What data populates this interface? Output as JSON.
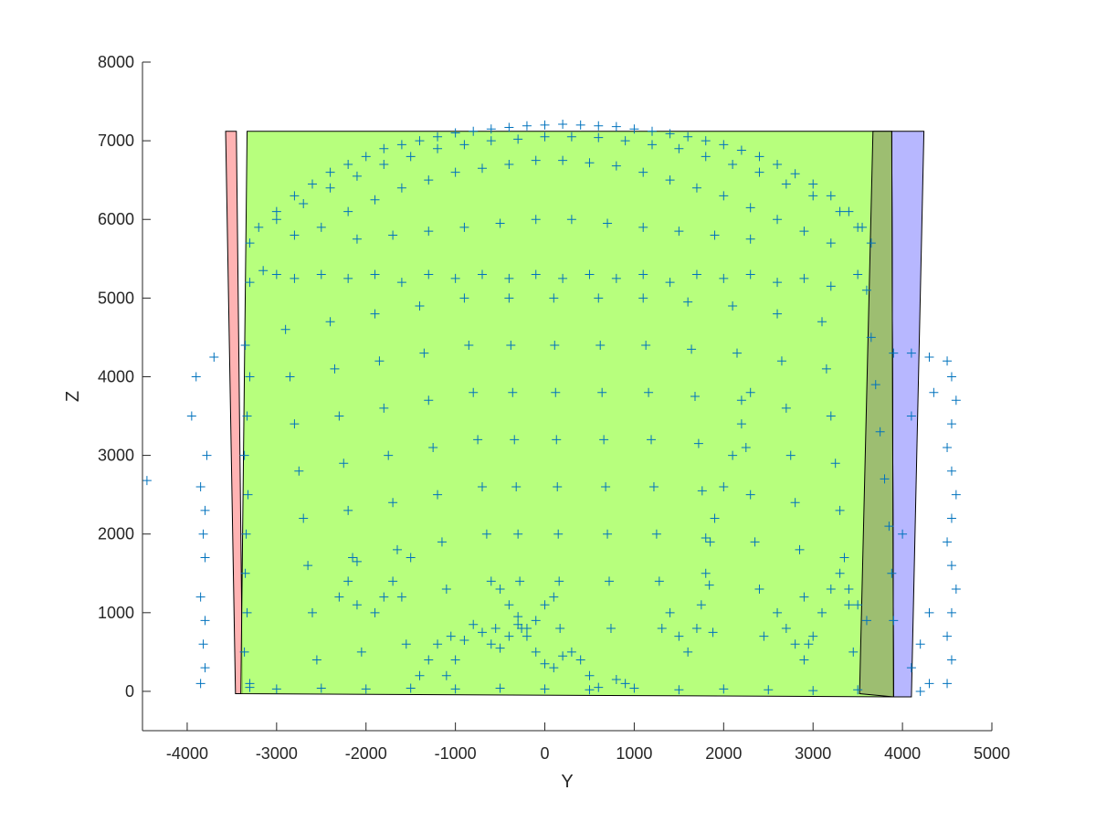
{
  "chart_data": {
    "type": "scatter",
    "xlabel": "Y",
    "ylabel": "Z",
    "xlim": [
      -4500,
      5000
    ],
    "ylim": [
      -500,
      8000
    ],
    "xticks": [
      -4000,
      -3000,
      -2000,
      -1000,
      0,
      1000,
      2000,
      3000,
      4000,
      5000
    ],
    "yticks": [
      0,
      1000,
      2000,
      3000,
      4000,
      5000,
      6000,
      7000,
      8000
    ],
    "xtick_labels": [
      "-4000",
      "-3000",
      "-2000",
      "-1000",
      "0",
      "1000",
      "2000",
      "3000",
      "4000",
      "5000"
    ],
    "ytick_labels": [
      "0",
      "1000",
      "2000",
      "3000",
      "4000",
      "5000",
      "6000",
      "7000",
      "8000"
    ],
    "grid": false,
    "marker": "+",
    "marker_color": "#0072BD",
    "regions": [
      {
        "color": "#FFA6A6",
        "polygon": [
          [
            -3570,
            7120
          ],
          [
            -3450,
            7120
          ],
          [
            -3380,
            -30
          ],
          [
            -3460,
            -30
          ]
        ]
      },
      {
        "color": "#AAAAFF",
        "polygon": [
          [
            3880,
            7120
          ],
          [
            4240,
            7120
          ],
          [
            4100,
            -70
          ],
          [
            3900,
            -70
          ]
        ]
      },
      {
        "color": "#AAFF66",
        "polygon": [
          [
            -3330,
            7120
          ],
          [
            3880,
            7120
          ],
          [
            3900,
            -70
          ],
          [
            -3400,
            -30
          ]
        ]
      },
      {
        "color": "#99B36E",
        "polygon": [
          [
            3670,
            7120
          ],
          [
            3880,
            7120
          ],
          [
            3900,
            -70
          ],
          [
            3520,
            -30
          ]
        ]
      }
    ],
    "points": [
      [
        -4450,
        2680
      ],
      [
        -3850,
        2600
      ],
      [
        -3800,
        2300
      ],
      [
        -3820,
        2000
      ],
      [
        -3800,
        1700
      ],
      [
        -3850,
        1200
      ],
      [
        -3800,
        900
      ],
      [
        -3820,
        600
      ],
      [
        -3800,
        300
      ],
      [
        -3850,
        100
      ],
      [
        -3780,
        3000
      ],
      [
        -3700,
        4250
      ],
      [
        -3900,
        4000
      ],
      [
        -3950,
        3500
      ],
      [
        -3350,
        4400
      ],
      [
        -3300,
        4000
      ],
      [
        -3330,
        3500
      ],
      [
        -3360,
        3000
      ],
      [
        -3320,
        2500
      ],
      [
        -3340,
        2000
      ],
      [
        -3350,
        1500
      ],
      [
        -3330,
        1000
      ],
      [
        -3360,
        500
      ],
      [
        -3300,
        100
      ],
      [
        -3300,
        5200
      ],
      [
        -3150,
        5350
      ],
      [
        -3000,
        5300
      ],
      [
        -3300,
        5700
      ],
      [
        -3200,
        5900
      ],
      [
        -3000,
        6100
      ],
      [
        -2800,
        6300
      ],
      [
        -2600,
        6450
      ],
      [
        -2400,
        6600
      ],
      [
        -2200,
        6700
      ],
      [
        -2000,
        6800
      ],
      [
        -1800,
        6900
      ],
      [
        -1600,
        6950
      ],
      [
        -1400,
        7000
      ],
      [
        -1200,
        7050
      ],
      [
        -1000,
        7100
      ],
      [
        -800,
        7120
      ],
      [
        -600,
        7150
      ],
      [
        -400,
        7170
      ],
      [
        -200,
        7190
      ],
      [
        0,
        7200
      ],
      [
        200,
        7210
      ],
      [
        400,
        7200
      ],
      [
        600,
        7190
      ],
      [
        800,
        7180
      ],
      [
        1000,
        7150
      ],
      [
        1200,
        7120
      ],
      [
        1400,
        7090
      ],
      [
        1600,
        7050
      ],
      [
        1800,
        7000
      ],
      [
        2000,
        6950
      ],
      [
        2200,
        6880
      ],
      [
        2400,
        6800
      ],
      [
        2600,
        6700
      ],
      [
        2800,
        6580
      ],
      [
        3000,
        6450
      ],
      [
        3200,
        6300
      ],
      [
        3400,
        6100
      ],
      [
        3550,
        5900
      ],
      [
        3650,
        5700
      ],
      [
        -3000,
        6000
      ],
      [
        -2700,
        6200
      ],
      [
        -2400,
        6400
      ],
      [
        -2100,
        6550
      ],
      [
        -1800,
        6700
      ],
      [
        -1500,
        6800
      ],
      [
        -1200,
        6900
      ],
      [
        -900,
        6950
      ],
      [
        -600,
        7000
      ],
      [
        -300,
        7020
      ],
      [
        0,
        7050
      ],
      [
        300,
        7050
      ],
      [
        600,
        7040
      ],
      [
        900,
        7000
      ],
      [
        1200,
        6950
      ],
      [
        1500,
        6900
      ],
      [
        1800,
        6800
      ],
      [
        2100,
        6700
      ],
      [
        2400,
        6600
      ],
      [
        2700,
        6450
      ],
      [
        3000,
        6300
      ],
      [
        3300,
        6100
      ],
      [
        3500,
        5900
      ],
      [
        -2800,
        5800
      ],
      [
        -2500,
        5900
      ],
      [
        -2200,
        6100
      ],
      [
        -1900,
        6250
      ],
      [
        -1600,
        6400
      ],
      [
        -1300,
        6500
      ],
      [
        -1000,
        6600
      ],
      [
        -700,
        6650
      ],
      [
        -400,
        6700
      ],
      [
        -100,
        6750
      ],
      [
        200,
        6750
      ],
      [
        500,
        6720
      ],
      [
        800,
        6680
      ],
      [
        1100,
        6600
      ],
      [
        1400,
        6500
      ],
      [
        1700,
        6400
      ],
      [
        2000,
        6300
      ],
      [
        2300,
        6150
      ],
      [
        2600,
        6000
      ],
      [
        2900,
        5850
      ],
      [
        3200,
        5700
      ],
      [
        -2100,
        5750
      ],
      [
        -1700,
        5800
      ],
      [
        -1300,
        5850
      ],
      [
        -900,
        5900
      ],
      [
        -500,
        5950
      ],
      [
        -100,
        6000
      ],
      [
        300,
        6000
      ],
      [
        700,
        5950
      ],
      [
        1100,
        5900
      ],
      [
        1500,
        5850
      ],
      [
        1900,
        5800
      ],
      [
        2300,
        5750
      ],
      [
        -2800,
        5250
      ],
      [
        -2500,
        5300
      ],
      [
        -2200,
        5250
      ],
      [
        -1900,
        5300
      ],
      [
        -1600,
        5200
      ],
      [
        -1300,
        5300
      ],
      [
        -1000,
        5250
      ],
      [
        -700,
        5300
      ],
      [
        -400,
        5250
      ],
      [
        -100,
        5300
      ],
      [
        200,
        5250
      ],
      [
        500,
        5300
      ],
      [
        800,
        5250
      ],
      [
        1100,
        5300
      ],
      [
        1400,
        5200
      ],
      [
        1700,
        5300
      ],
      [
        2000,
        5250
      ],
      [
        2300,
        5300
      ],
      [
        2600,
        5200
      ],
      [
        2900,
        5250
      ],
      [
        3200,
        5150
      ],
      [
        3500,
        5300
      ],
      [
        -2900,
        4600
      ],
      [
        -2850,
        4000
      ],
      [
        -2800,
        3400
      ],
      [
        -2750,
        2800
      ],
      [
        -2700,
        2200
      ],
      [
        -2650,
        1600
      ],
      [
        -2600,
        1000
      ],
      [
        -2550,
        400
      ],
      [
        -2400,
        4700
      ],
      [
        -2350,
        4100
      ],
      [
        -2300,
        3500
      ],
      [
        -2250,
        2900
      ],
      [
        -2200,
        2300
      ],
      [
        -2150,
        1700
      ],
      [
        -2100,
        1100
      ],
      [
        -2050,
        500
      ],
      [
        -1900,
        4800
      ],
      [
        -1850,
        4200
      ],
      [
        -1800,
        3600
      ],
      [
        -1750,
        3000
      ],
      [
        -1700,
        2400
      ],
      [
        -1650,
        1800
      ],
      [
        -1600,
        1200
      ],
      [
        -1550,
        600
      ],
      [
        -1400,
        4900
      ],
      [
        -1350,
        4300
      ],
      [
        -1300,
        3700
      ],
      [
        -1250,
        3100
      ],
      [
        -1200,
        2500
      ],
      [
        -1150,
        1900
      ],
      [
        -1100,
        1300
      ],
      [
        -1050,
        700
      ],
      [
        -900,
        5000
      ],
      [
        -850,
        4400
      ],
      [
        -800,
        3800
      ],
      [
        -750,
        3200
      ],
      [
        -700,
        2600
      ],
      [
        -650,
        2000
      ],
      [
        -600,
        1400
      ],
      [
        -550,
        800
      ],
      [
        -400,
        5000
      ],
      [
        -380,
        4400
      ],
      [
        -360,
        3800
      ],
      [
        -340,
        3200
      ],
      [
        -320,
        2600
      ],
      [
        -300,
        2000
      ],
      [
        -280,
        1400
      ],
      [
        -260,
        800
      ],
      [
        100,
        5000
      ],
      [
        110,
        4400
      ],
      [
        120,
        3800
      ],
      [
        130,
        3200
      ],
      [
        140,
        2600
      ],
      [
        150,
        2000
      ],
      [
        160,
        1400
      ],
      [
        170,
        800
      ],
      [
        600,
        5000
      ],
      [
        620,
        4400
      ],
      [
        640,
        3800
      ],
      [
        660,
        3200
      ],
      [
        680,
        2600
      ],
      [
        700,
        2000
      ],
      [
        720,
        1400
      ],
      [
        740,
        800
      ],
      [
        1100,
        5000
      ],
      [
        1130,
        4400
      ],
      [
        1160,
        3800
      ],
      [
        1190,
        3200
      ],
      [
        1220,
        2600
      ],
      [
        1250,
        2000
      ],
      [
        1280,
        1400
      ],
      [
        1310,
        800
      ],
      [
        1600,
        4950
      ],
      [
        1640,
        4350
      ],
      [
        1680,
        3750
      ],
      [
        1720,
        3150
      ],
      [
        1760,
        2550
      ],
      [
        1800,
        1950
      ],
      [
        1840,
        1350
      ],
      [
        1880,
        750
      ],
      [
        2100,
        4900
      ],
      [
        2150,
        4300
      ],
      [
        2200,
        3700
      ],
      [
        2250,
        3100
      ],
      [
        2300,
        2500
      ],
      [
        2350,
        1900
      ],
      [
        2400,
        1300
      ],
      [
        2450,
        700
      ],
      [
        2600,
        4800
      ],
      [
        2650,
        4200
      ],
      [
        2700,
        3600
      ],
      [
        2750,
        3000
      ],
      [
        2800,
        2400
      ],
      [
        2850,
        1800
      ],
      [
        2900,
        1200
      ],
      [
        2950,
        600
      ],
      [
        3100,
        4700
      ],
      [
        3150,
        4100
      ],
      [
        3200,
        3500
      ],
      [
        3250,
        2900
      ],
      [
        3300,
        2300
      ],
      [
        3350,
        1700
      ],
      [
        3400,
        1100
      ],
      [
        3450,
        500
      ],
      [
        -2300,
        1200
      ],
      [
        -2200,
        1400
      ],
      [
        -2100,
        1650
      ],
      [
        -1900,
        1000
      ],
      [
        -1800,
        1200
      ],
      [
        -1700,
        1400
      ],
      [
        -1500,
        1700
      ],
      [
        -1400,
        200
      ],
      [
        -1300,
        400
      ],
      [
        -1200,
        600
      ],
      [
        -1100,
        200
      ],
      [
        -1000,
        400
      ],
      [
        -900,
        650
      ],
      [
        -800,
        850
      ],
      [
        -700,
        750
      ],
      [
        -600,
        600
      ],
      [
        -500,
        550
      ],
      [
        -400,
        700
      ],
      [
        -300,
        850
      ],
      [
        -200,
        800
      ],
      [
        -100,
        900
      ],
      [
        0,
        1100
      ],
      [
        100,
        1200
      ],
      [
        -500,
        1300
      ],
      [
        -400,
        1100
      ],
      [
        -300,
        950
      ],
      [
        -200,
        700
      ],
      [
        -100,
        500
      ],
      [
        0,
        350
      ],
      [
        100,
        300
      ],
      [
        200,
        450
      ],
      [
        300,
        500
      ],
      [
        400,
        400
      ],
      [
        500,
        200
      ],
      [
        600,
        50
      ],
      [
        1400,
        1000
      ],
      [
        1500,
        700
      ],
      [
        1600,
        500
      ],
      [
        1700,
        800
      ],
      [
        1750,
        1100
      ],
      [
        1800,
        1500
      ],
      [
        1850,
        1900
      ],
      [
        1900,
        2200
      ],
      [
        2000,
        2600
      ],
      [
        2100,
        3000
      ],
      [
        2200,
        3400
      ],
      [
        2300,
        3800
      ],
      [
        2600,
        1000
      ],
      [
        2700,
        800
      ],
      [
        2800,
        600
      ],
      [
        2900,
        400
      ],
      [
        3000,
        700
      ],
      [
        3100,
        1000
      ],
      [
        3200,
        1300
      ],
      [
        3300,
        1500
      ],
      [
        3400,
        1300
      ],
      [
        3500,
        1100
      ],
      [
        3600,
        900
      ],
      [
        -3300,
        50
      ],
      [
        -3000,
        30
      ],
      [
        -2500,
        40
      ],
      [
        -2000,
        30
      ],
      [
        -1500,
        40
      ],
      [
        -1000,
        30
      ],
      [
        -500,
        40
      ],
      [
        0,
        30
      ],
      [
        500,
        20
      ],
      [
        800,
        150
      ],
      [
        900,
        100
      ],
      [
        1000,
        40
      ],
      [
        1500,
        20
      ],
      [
        2000,
        30
      ],
      [
        2500,
        20
      ],
      [
        3000,
        10
      ],
      [
        3500,
        20
      ],
      [
        3600,
        5100
      ],
      [
        3650,
        4500
      ],
      [
        3700,
        3900
      ],
      [
        3750,
        3300
      ],
      [
        3800,
        2700
      ],
      [
        3850,
        2100
      ],
      [
        3880,
        1500
      ],
      [
        3900,
        900
      ],
      [
        3900,
        4300
      ],
      [
        4100,
        4300
      ],
      [
        4300,
        4250
      ],
      [
        4500,
        4200
      ],
      [
        4550,
        4000
      ],
      [
        4600,
        3700
      ],
      [
        4550,
        3400
      ],
      [
        4500,
        3100
      ],
      [
        4550,
        2800
      ],
      [
        4600,
        2500
      ],
      [
        4550,
        2200
      ],
      [
        4500,
        1900
      ],
      [
        4550,
        1600
      ],
      [
        4600,
        1300
      ],
      [
        4550,
        1000
      ],
      [
        4500,
        700
      ],
      [
        4550,
        400
      ],
      [
        4500,
        100
      ],
      [
        4300,
        1000
      ],
      [
        4200,
        600
      ],
      [
        4100,
        300
      ],
      [
        4000,
        2000
      ],
      [
        4100,
        3500
      ],
      [
        4350,
        3800
      ],
      [
        4300,
        100
      ],
      [
        4200,
        0
      ]
    ]
  }
}
